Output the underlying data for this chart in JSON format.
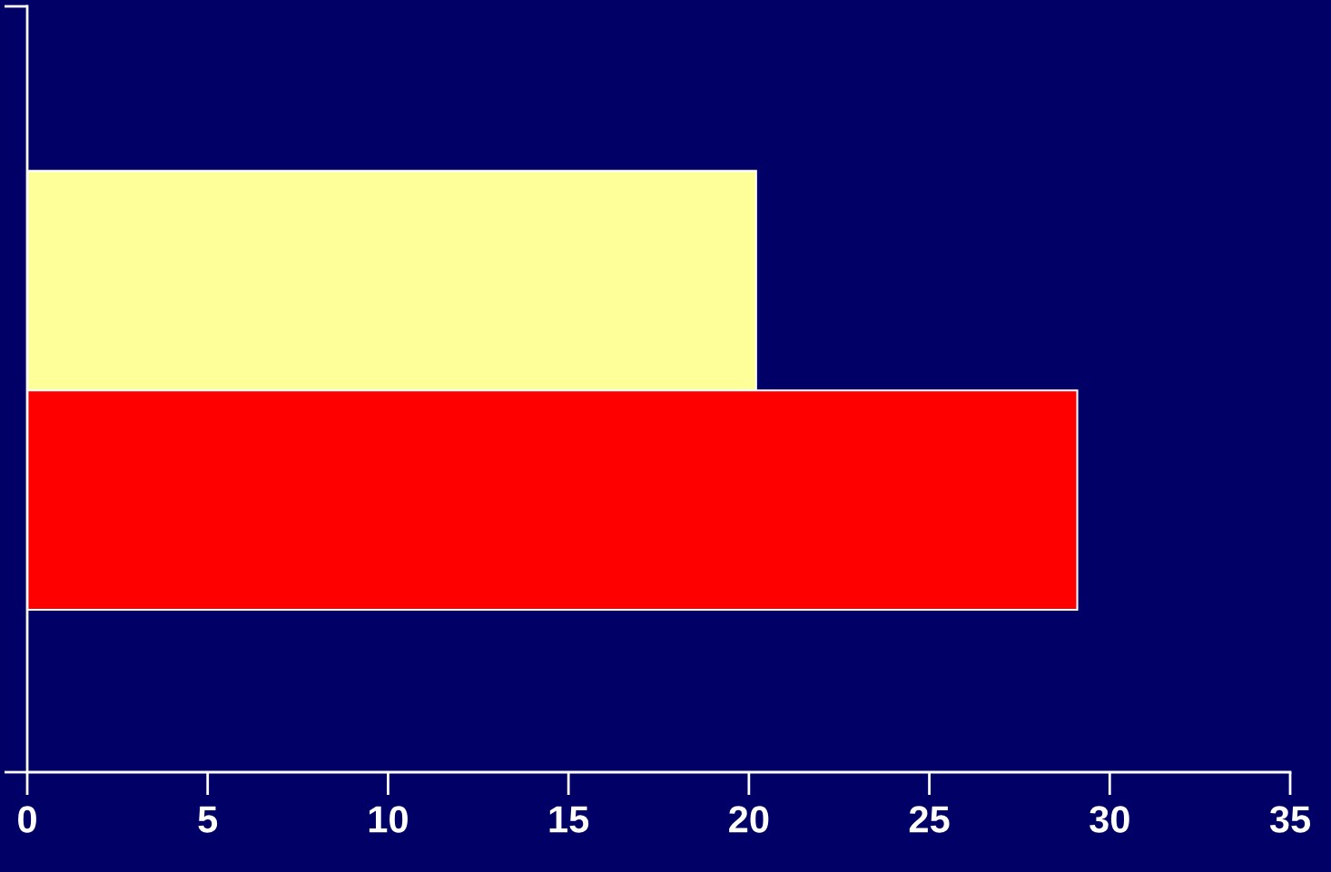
{
  "chart_data": {
    "type": "bar",
    "orientation": "horizontal",
    "categories": [
      null,
      null
    ],
    "values": [
      20.2,
      29.1
    ],
    "colors": [
      "#ffff99",
      "#ff0000"
    ],
    "xlim": [
      0,
      35
    ],
    "xticks": [
      0,
      5,
      10,
      15,
      20,
      25,
      30,
      35
    ],
    "grid": false,
    "legend": false
  }
}
